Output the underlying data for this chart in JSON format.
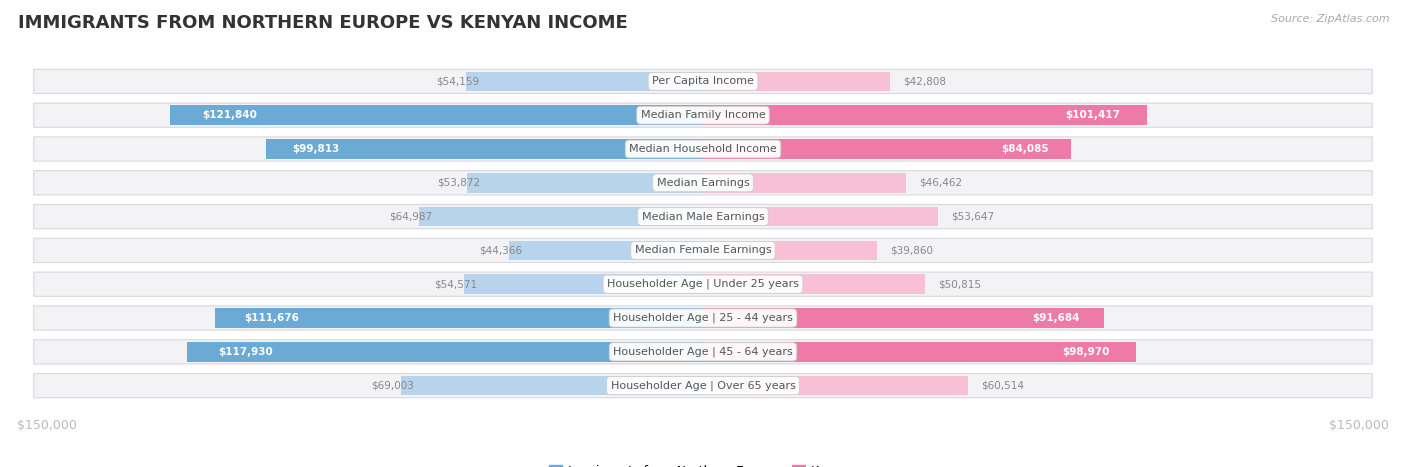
{
  "title": "IMMIGRANTS FROM NORTHERN EUROPE VS KENYAN INCOME",
  "source": "Source: ZipAtlas.com",
  "categories": [
    "Per Capita Income",
    "Median Family Income",
    "Median Household Income",
    "Median Earnings",
    "Median Male Earnings",
    "Median Female Earnings",
    "Householder Age | Under 25 years",
    "Householder Age | 25 - 44 years",
    "Householder Age | 45 - 64 years",
    "Householder Age | Over 65 years"
  ],
  "left_values": [
    54159,
    121840,
    99813,
    53872,
    64987,
    44366,
    54571,
    111676,
    117930,
    69003
  ],
  "right_values": [
    42808,
    101417,
    84085,
    46462,
    53647,
    39860,
    50815,
    91684,
    98970,
    60514
  ],
  "left_labels": [
    "$54,159",
    "$121,840",
    "$99,813",
    "$53,872",
    "$64,987",
    "$44,366",
    "$54,571",
    "$111,676",
    "$117,930",
    "$69,003"
  ],
  "right_labels": [
    "$42,808",
    "$101,417",
    "$84,085",
    "$46,462",
    "$53,647",
    "$39,860",
    "$50,815",
    "$91,684",
    "$98,970",
    "$60,514"
  ],
  "max_val": 150000,
  "left_color_strong": "#6aaad4",
  "left_color_weak": "#b8d4ec",
  "right_color_strong": "#ee7aa8",
  "right_color_weak": "#f7c0d4",
  "label_color_strong": "#ffffff",
  "label_color_weak": "#888888",
  "threshold": 80000,
  "legend_left": "Immigrants from Northern Europe",
  "legend_right": "Kenyan",
  "row_bg_color": "#f3f3f5",
  "row_border_color": "#d8d8e0",
  "axis_label_color": "#bbbbbb",
  "title_color": "#333333",
  "source_color": "#aaaaaa",
  "cat_label_color": "#555555"
}
